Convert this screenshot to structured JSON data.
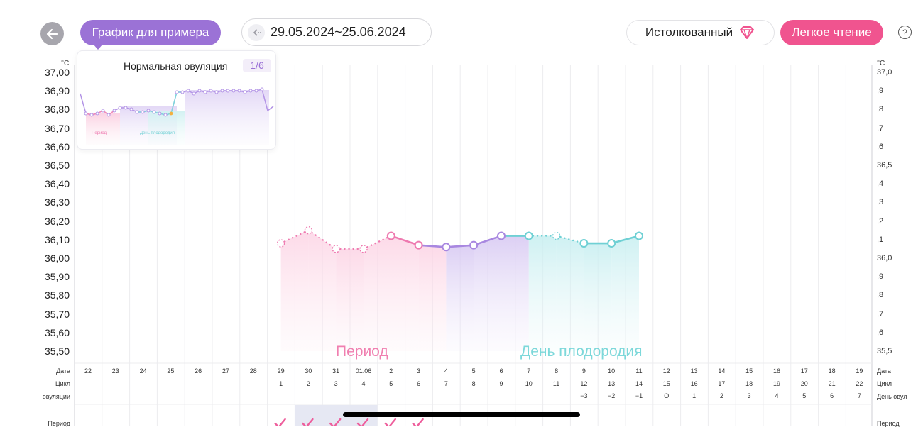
{
  "header": {
    "sample_chart_label": "График для примера",
    "date_range": "29.05.2024~25.06.2024",
    "interpreted_label": "Истолкованный",
    "easy_read_label": "Легкое чтение",
    "help_symbol": "?"
  },
  "icons": [
    "back-arrow-icon",
    "calendar-back-icon",
    "diamond-icon",
    "help-icon",
    "check-icon"
  ],
  "colors": {
    "purple": "#9b72d6",
    "pink": "#f0548f",
    "period": "#ee7ab0",
    "fertile": "#6fd0d4",
    "ovulation": "#a887e0"
  },
  "chart": {
    "unit": "°C",
    "left_axis": [
      "37,00",
      "36,90",
      "36,80",
      "36,70",
      "36,60",
      "36,50",
      "36,40",
      "36,30",
      "36,20",
      "36,10",
      "36,00",
      "35,90",
      "35,80",
      "35,70",
      "35,60",
      "35,50"
    ],
    "right_axis": [
      "37,0",
      ",9",
      ",8",
      ",7",
      ",6",
      "36,5",
      ",4",
      ",3",
      ",2",
      ",1",
      "36,0",
      ",9",
      ",8",
      ",7",
      ",6",
      "35,5"
    ],
    "zone_period_label": "Период",
    "zone_fertile_label": "День плодородия"
  },
  "rows": {
    "date_label": "Дата",
    "cycle_label": "Цикл",
    "ovulation_label_left": "овуляции",
    "ovulation_label_right": "День овул",
    "period_label": "Период",
    "dates": [
      "22",
      "23",
      "24",
      "25",
      "26",
      "27",
      "28",
      "29",
      "30",
      "31",
      "01.06",
      "2",
      "3",
      "4",
      "5",
      "6",
      "7",
      "8",
      "9",
      "10",
      "11",
      "12",
      "13",
      "14",
      "15",
      "16",
      "17",
      "18",
      "19"
    ],
    "cycle": [
      "",
      "",
      "",
      "",
      "",
      "",
      "",
      "1",
      "2",
      "3",
      "4",
      "5",
      "6",
      "7",
      "8",
      "9",
      "10",
      "11",
      "12",
      "13",
      "14",
      "15",
      "16",
      "17",
      "18",
      "19",
      "20",
      "21",
      "22"
    ],
    "ovulation": [
      "",
      "",
      "",
      "",
      "",
      "",
      "",
      "",
      "",
      "",
      "",
      "",
      "",
      "",
      "",
      "",
      "",
      "",
      "−3",
      "−2",
      "−1",
      "O",
      "1",
      "2",
      "3",
      "4",
      "5",
      "6",
      "7"
    ]
  },
  "popup": {
    "title": "Нормальная овуляция",
    "page": "1/6",
    "period_label": "Период",
    "fertile_label": "День плодородия"
  },
  "chart_data": {
    "type": "line",
    "title": "",
    "ylabel": "°C",
    "ylim": [
      35.5,
      37.0
    ],
    "x": [
      "29",
      "30",
      "31",
      "01.06",
      "2",
      "3",
      "4",
      "5",
      "6",
      "7",
      "8",
      "9",
      "10",
      "11"
    ],
    "series": [
      {
        "name": "Период",
        "values": [
          36.08,
          36.15,
          36.05,
          36.05,
          36.12,
          36.07,
          36.06,
          36.07,
          36.12,
          36.12,
          36.12,
          36.08,
          36.08,
          36.12
        ]
      }
    ],
    "point_phase": [
      "period",
      "period",
      "period",
      "period",
      "period",
      "period",
      "ovulation",
      "ovulation",
      "ovulation",
      "fertile",
      "fertile",
      "fertile",
      "fertile",
      "fertile"
    ],
    "point_estimated": [
      true,
      true,
      true,
      true,
      false,
      false,
      false,
      false,
      false,
      false,
      true,
      false,
      false,
      false
    ],
    "period_checks": [
      "29",
      "30",
      "31",
      "01.06",
      "2",
      "3"
    ]
  }
}
